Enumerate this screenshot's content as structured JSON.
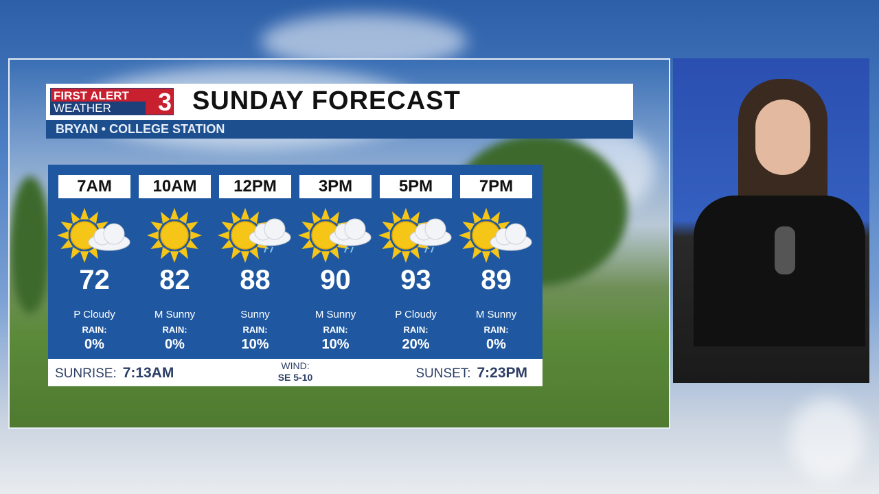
{
  "logo": {
    "line1": "FIRST ALERT",
    "line2": "WEATHER",
    "number": "3"
  },
  "header": {
    "title": "SUNDAY FORECAST",
    "location": "BRYAN • COLLEGE STATION"
  },
  "forecast": [
    {
      "time": "7AM",
      "icon": "sun-cloud",
      "temp": "72",
      "condition": "P Cloudy",
      "rain_label": "RAIN:",
      "rain": "0%"
    },
    {
      "time": "10AM",
      "icon": "sun",
      "temp": "82",
      "condition": "M Sunny",
      "rain_label": "RAIN:",
      "rain": "0%"
    },
    {
      "time": "12PM",
      "icon": "sun-cloud-rain",
      "temp": "88",
      "condition": "Sunny",
      "rain_label": "RAIN:",
      "rain": "10%"
    },
    {
      "time": "3PM",
      "icon": "sun-cloud-rain",
      "temp": "90",
      "condition": "M Sunny",
      "rain_label": "RAIN:",
      "rain": "10%"
    },
    {
      "time": "5PM",
      "icon": "sun-cloud-rain",
      "temp": "93",
      "condition": "P Cloudy",
      "rain_label": "RAIN:",
      "rain": "20%"
    },
    {
      "time": "7PM",
      "icon": "sun-cloud",
      "temp": "89",
      "condition": "M Sunny",
      "rain_label": "RAIN:",
      "rain": "0%"
    }
  ],
  "footer": {
    "sunrise_label": "SUNRISE:",
    "sunrise": "7:13AM",
    "wind_label": "WIND:",
    "wind": "SE 5-10",
    "sunset_label": "SUNSET:",
    "sunset": "7:23PM"
  },
  "colors": {
    "panel": "#1f58a0",
    "sun": "#f5c518",
    "location_bar": "#1d4f8f",
    "logo_red": "#c8202e"
  }
}
